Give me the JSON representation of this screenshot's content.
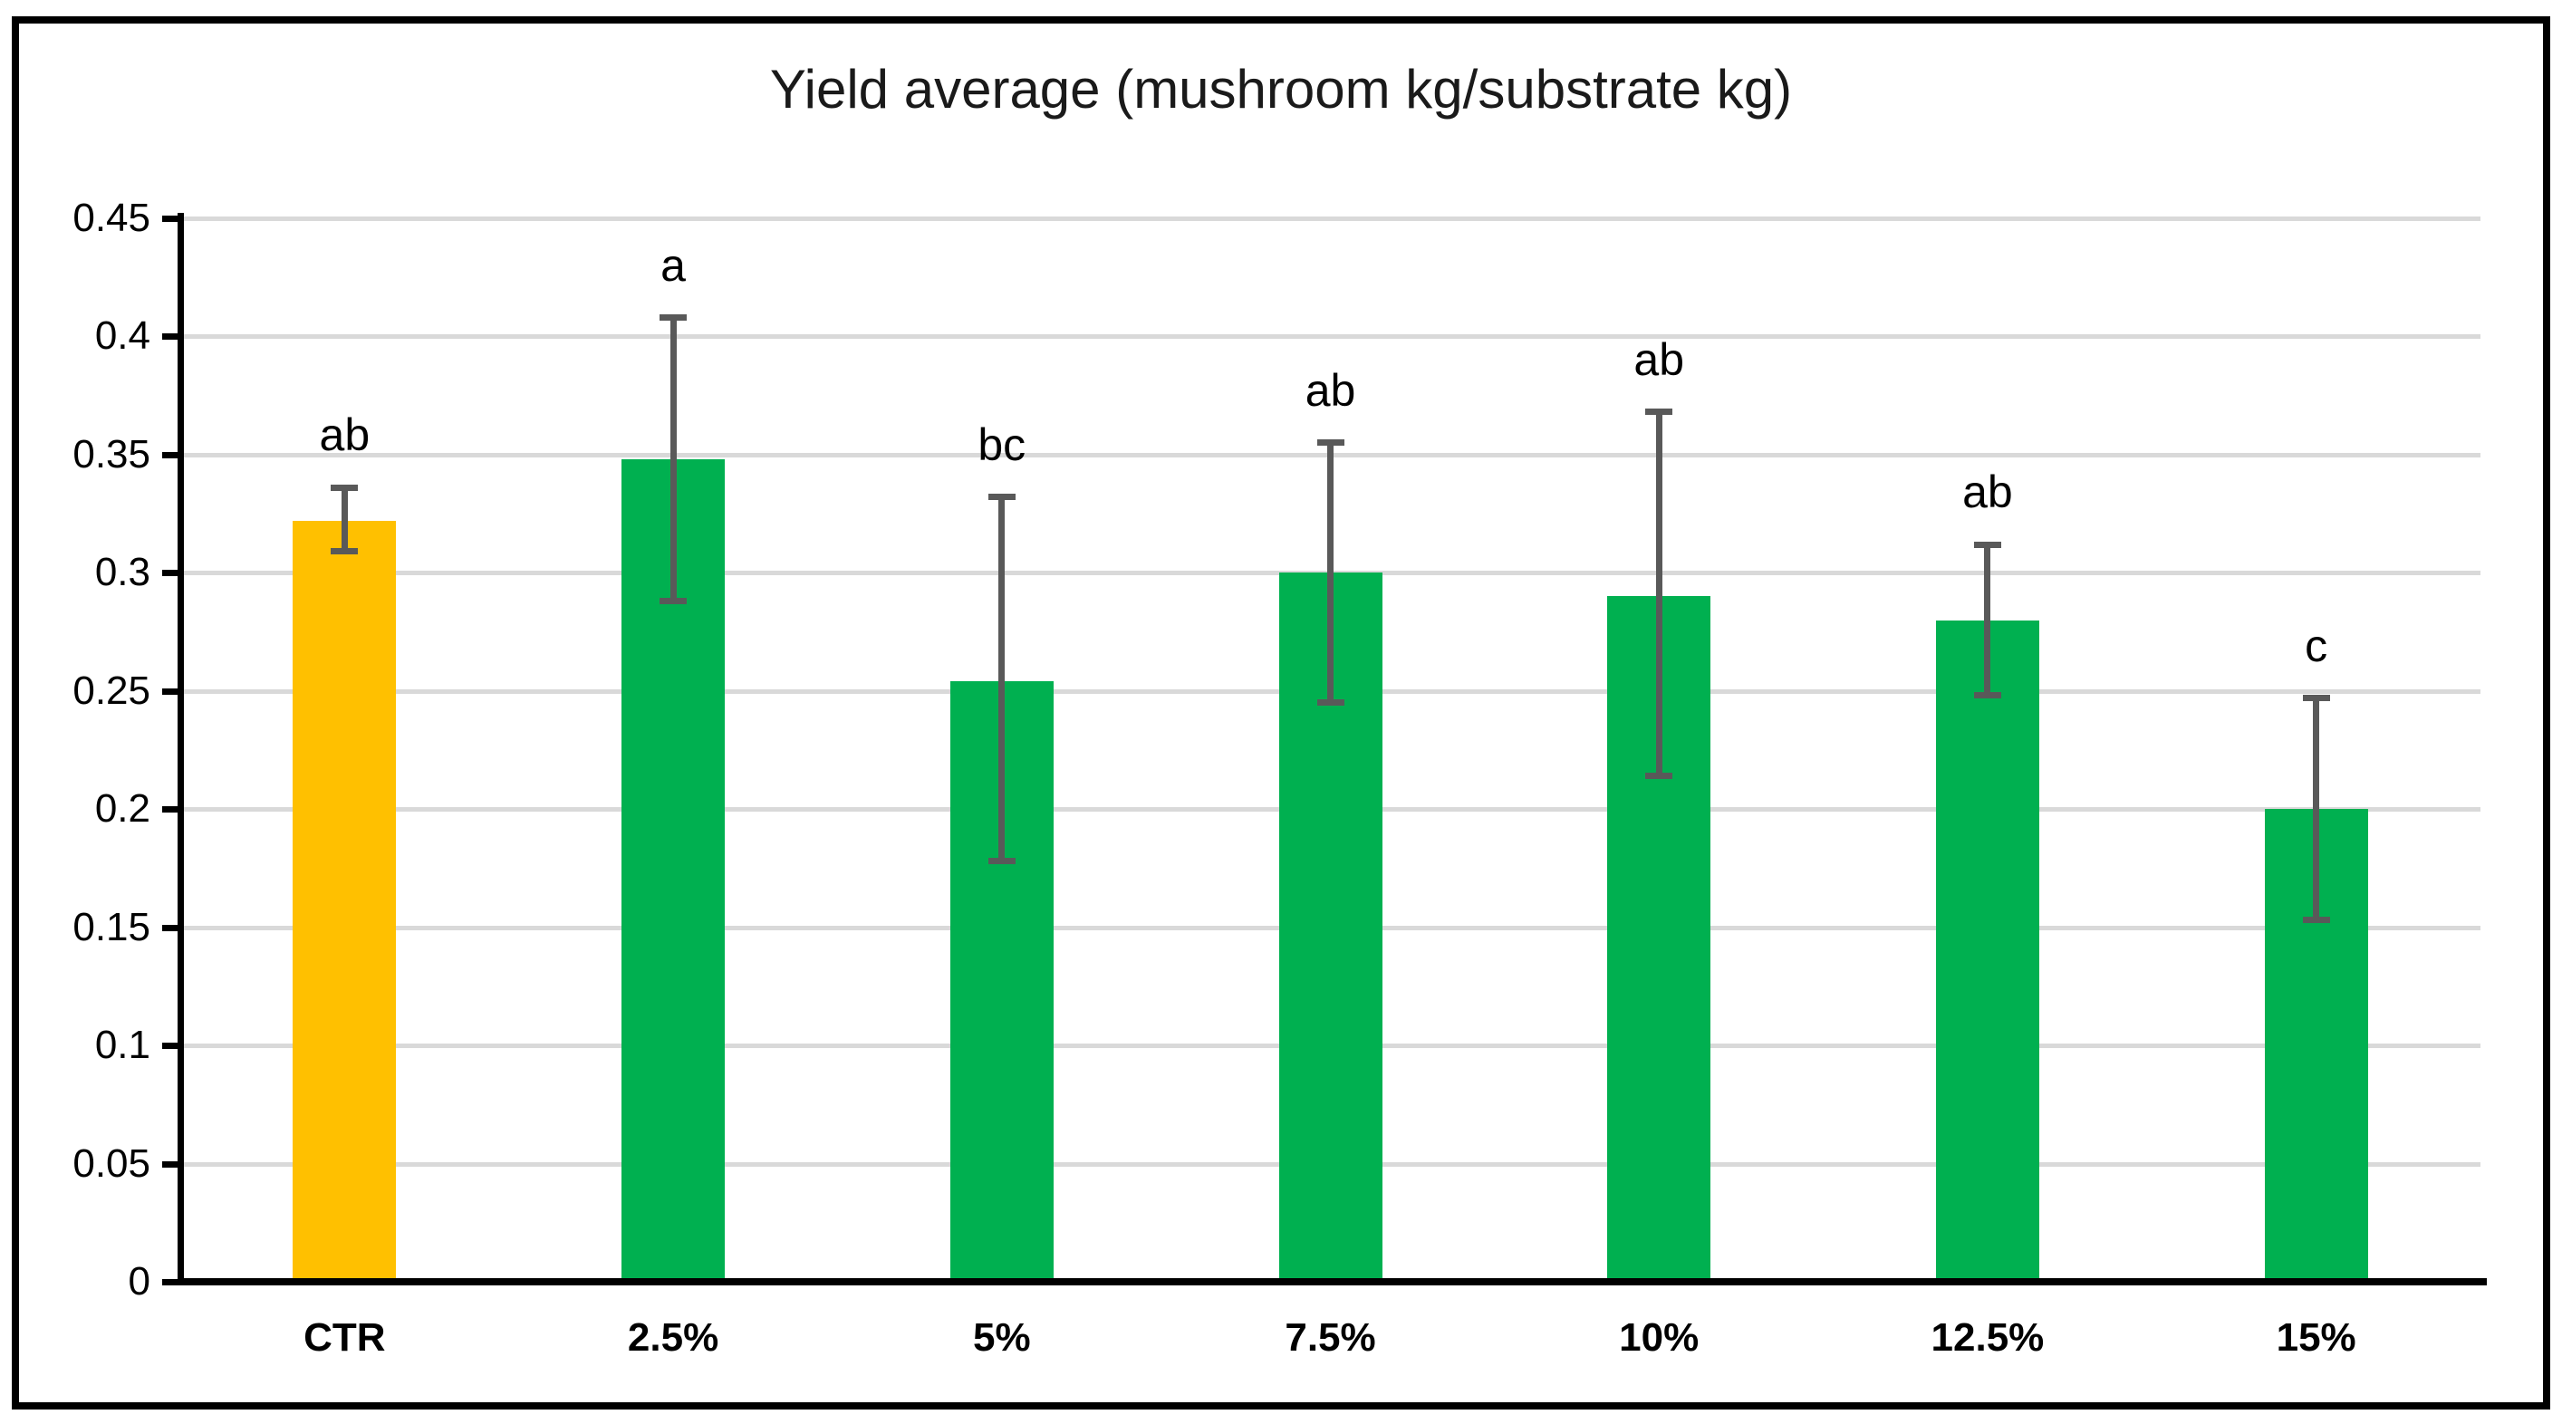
{
  "title": "Yield average (mushroom kg/substrate kg)",
  "colors": {
    "control_bar": "#FFC000",
    "treatment_bar": "#00B050",
    "error_bar": "#595959",
    "gridline": "#D9D9D9",
    "axis": "#000000",
    "border": "#000000",
    "background": "#FFFFFF"
  },
  "chart_data": {
    "type": "bar",
    "title": "Yield average (mushroom kg/substrate kg)",
    "categories": [
      "CTR",
      "2.5%",
      "5%",
      "7.5%",
      "10%",
      "12.5%",
      "15%"
    ],
    "values": [
      0.322,
      0.348,
      0.254,
      0.3,
      0.29,
      0.28,
      0.2
    ],
    "error_bars": {
      "upper": [
        0.336,
        0.408,
        0.332,
        0.355,
        0.368,
        0.312,
        0.247
      ],
      "lower": [
        0.309,
        0.288,
        0.178,
        0.245,
        0.214,
        0.248,
        0.153
      ]
    },
    "significance_labels": [
      "ab",
      "a",
      "bc",
      "ab",
      "ab",
      "ab",
      "c"
    ],
    "bar_colors": [
      "#FFC000",
      "#00B050",
      "#00B050",
      "#00B050",
      "#00B050",
      "#00B050",
      "#00B050"
    ],
    "xlabel": "",
    "ylabel": "",
    "ylim": [
      0,
      0.45
    ],
    "ytick_step": 0.05,
    "ytick_labels": [
      "0",
      "0.05",
      "0.1",
      "0.15",
      "0.2",
      "0.25",
      "0.3",
      "0.35",
      "0.4",
      "0.45"
    ],
    "grid": true,
    "legend": false
  }
}
